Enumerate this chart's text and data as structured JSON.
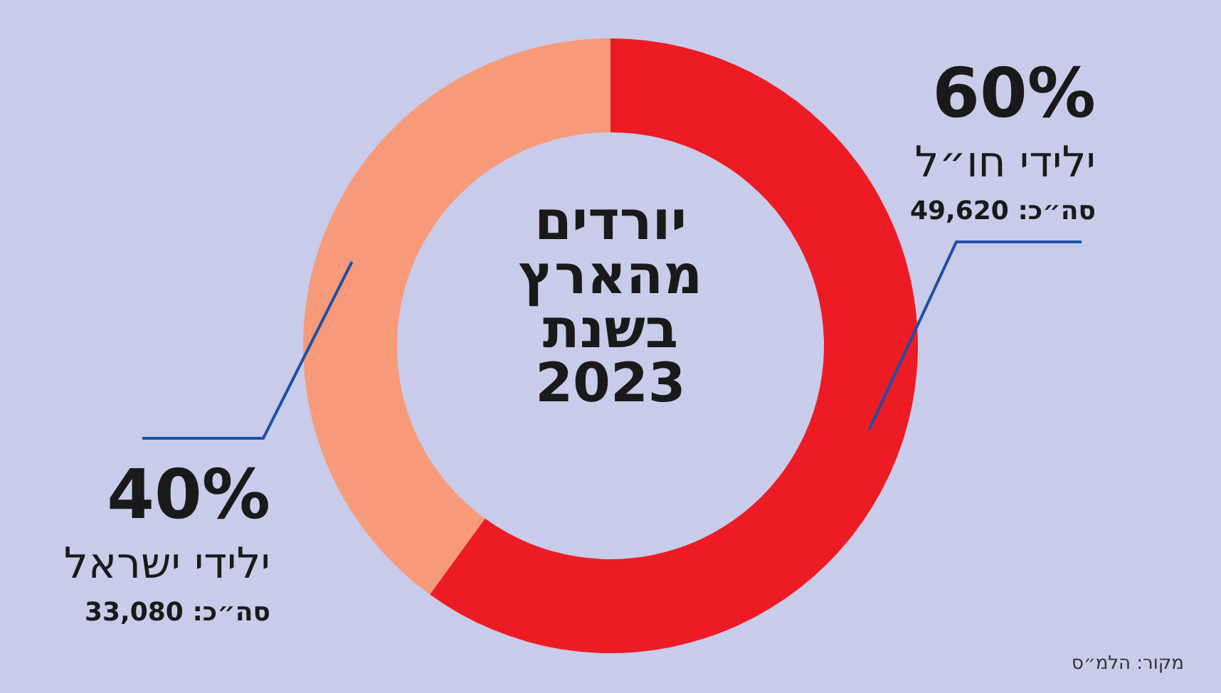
{
  "chart_data": {
    "type": "donut",
    "title": "יורדים מהארץ בשנת 2023",
    "categories": [
      "ילידי חו״ל",
      "ילידי ישראל"
    ],
    "values": [
      60,
      40
    ],
    "colors": [
      "#ed1c24",
      "#f79a7a"
    ],
    "value_labels": [
      "60%",
      "40%"
    ],
    "annotations": [
      "סה״כ: 49,620",
      "סה״כ: 33,080",
      "מקור: הלמ״ס"
    ]
  }
}
